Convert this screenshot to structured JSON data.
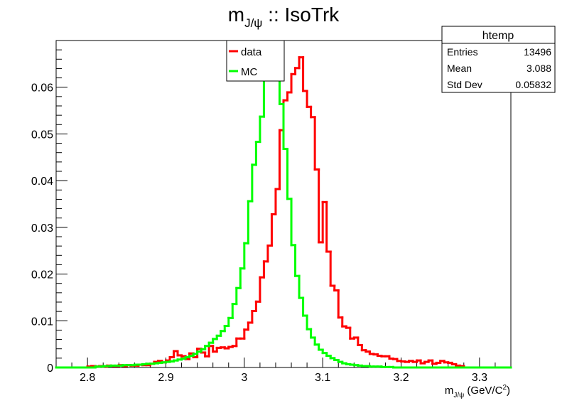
{
  "chart_data": {
    "type": "line",
    "title_main": "m",
    "title_sub": "J/ψ",
    "title_rest": " :: IsoTrk",
    "xlabel_main": "m",
    "xlabel_sub": "J/ψ",
    "xlabel_units": " (GeV/C",
    "xlabel_units_sup": "2",
    "xlabel_units_close": ")",
    "xlim": [
      2.76,
      3.34
    ],
    "ylim": [
      0,
      0.07
    ],
    "xticks": [
      2.8,
      2.9,
      3.0,
      3.1,
      3.2,
      3.3
    ],
    "xtick_labels": [
      "2.8",
      "2.9",
      "3",
      "3.1",
      "3.2",
      "3.3"
    ],
    "yticks": [
      0,
      0.01,
      0.02,
      0.03,
      0.04,
      0.05,
      0.06
    ],
    "ytick_labels": [
      "0",
      "0.01",
      "0.02",
      "0.03",
      "0.04",
      "0.05",
      "0.06"
    ],
    "legend_position": "top-center",
    "stats_position": "top-right",
    "series": [
      {
        "name": "data",
        "color": "#ff0000",
        "x_edges_start": 2.76,
        "bin_width": 0.005,
        "values": [
          0,
          0,
          0,
          0,
          0,
          0,
          0,
          0,
          0.0002,
          0.0003,
          0.0002,
          0.0003,
          0.0002,
          0.0004,
          0.0003,
          0.0003,
          0.0005,
          0.0003,
          0.0005,
          0.0004,
          0.0004,
          0.0006,
          0.0005,
          0.0005,
          0.0008,
          0.0012,
          0.0014,
          0.0011,
          0.0015,
          0.0022,
          0.0035,
          0.0026,
          0.0024,
          0.0018,
          0.003,
          0.0022,
          0.004,
          0.0032,
          0.0024,
          0.0046,
          0.0034,
          0.0042,
          0.0043,
          0.0041,
          0.0044,
          0.0046,
          0.0062,
          0.0062,
          0.0081,
          0.0096,
          0.0121,
          0.0141,
          0.0193,
          0.0227,
          0.0261,
          0.0328,
          0.0382,
          0.0508,
          0.0572,
          0.0589,
          0.0628,
          0.0641,
          0.0664,
          0.0592,
          0.0558,
          0.0536,
          0.0424,
          0.0268,
          0.0354,
          0.0248,
          0.0175,
          0.0165,
          0.0107,
          0.0088,
          0.0085,
          0.0062,
          0.0064,
          0.0048,
          0.0037,
          0.0034,
          0.0029,
          0.0028,
          0.0025,
          0.0024,
          0.0024,
          0.0019,
          0.0018,
          0.0014,
          0.0013,
          0.0012,
          0.0014,
          0.0012,
          0.0015,
          0.0009,
          0.0012,
          0.0015,
          0.0008,
          0.001,
          0.0014,
          0.0011,
          0.001,
          0.0007,
          0.0004,
          0.0003,
          0,
          0,
          0,
          0,
          0,
          0,
          0,
          0,
          0,
          0,
          0,
          0
        ]
      },
      {
        "name": "MC",
        "color": "#00ff00",
        "x_edges_start": 2.76,
        "bin_width": 0.005,
        "values": [
          0,
          0,
          0,
          0,
          0,
          0,
          0,
          0,
          0,
          0,
          0.0002,
          0.0002,
          0.0003,
          0.0003,
          0.0004,
          0.0004,
          0.0004,
          0.0005,
          0.0005,
          0.0005,
          0.0006,
          0.0006,
          0.0007,
          0.0008,
          0.0008,
          0.0009,
          0.001,
          0.0011,
          0.0012,
          0.0013,
          0.0015,
          0.0017,
          0.0019,
          0.0022,
          0.0025,
          0.0029,
          0.0034,
          0.0039,
          0.0046,
          0.0053,
          0.0061,
          0.0068,
          0.0078,
          0.0089,
          0.0106,
          0.0136,
          0.017,
          0.0212,
          0.0266,
          0.0356,
          0.0434,
          0.0483,
          0.0537,
          0.0625,
          0.0636,
          0.066,
          0.0655,
          0.0564,
          0.0468,
          0.0361,
          0.0262,
          0.0196,
          0.0149,
          0.0111,
          0.0082,
          0.0064,
          0.0049,
          0.0038,
          0.0031,
          0.0025,
          0.002,
          0.0016,
          0.0012,
          0.0009,
          0.0007,
          0.0006,
          0.0005,
          0.0004,
          0.0003,
          0.0003,
          0.0002,
          0.0002,
          0.0002,
          0.0001,
          0.0001,
          0.0001,
          0,
          0,
          0,
          0,
          0,
          0,
          0,
          0,
          0,
          0,
          0,
          0,
          0,
          0,
          0,
          0,
          0,
          0,
          0,
          0,
          0,
          0,
          0,
          0,
          0,
          0,
          0,
          0,
          0,
          0
        ]
      }
    ]
  },
  "legend": {
    "items": [
      {
        "label": "data",
        "color": "#ff0000"
      },
      {
        "label": "MC",
        "color": "#00ff00"
      }
    ]
  },
  "stats": {
    "title": "htemp",
    "rows": [
      {
        "label": "Entries",
        "value": "13496"
      },
      {
        "label": "Mean",
        "value": "3.088"
      },
      {
        "label": "Std Dev",
        "value": "0.05832"
      }
    ]
  }
}
